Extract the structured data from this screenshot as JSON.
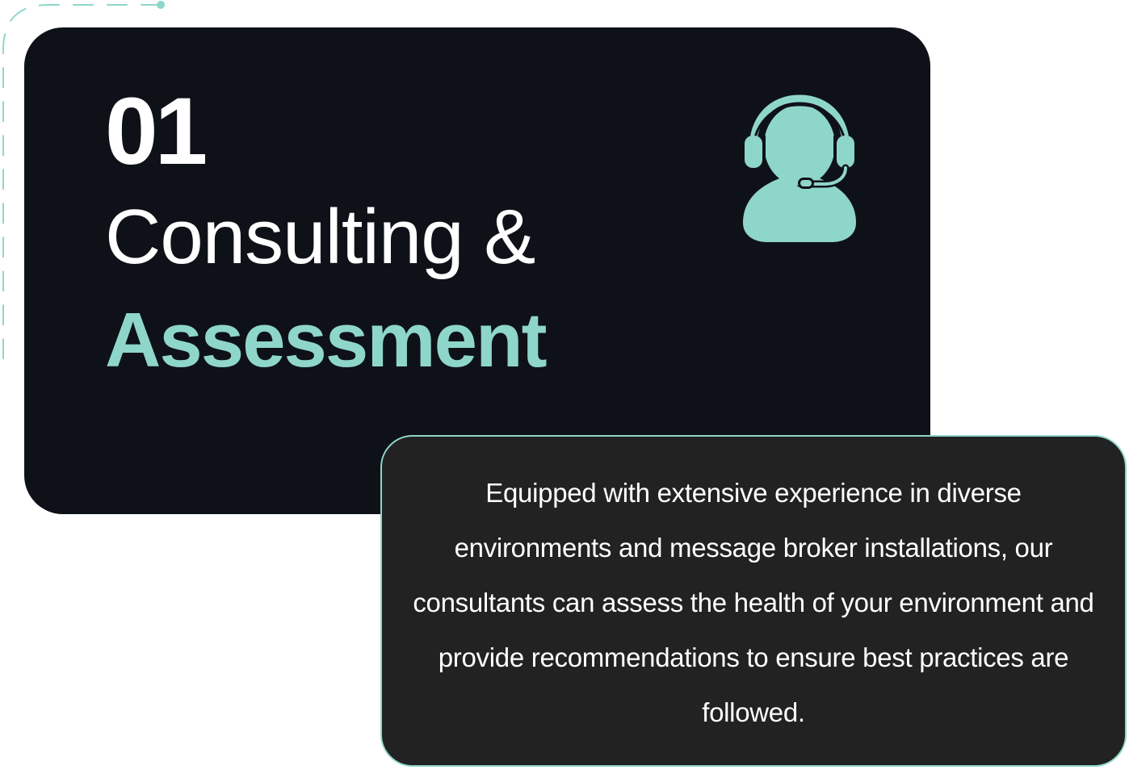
{
  "card": {
    "number": "01",
    "title_line1": "Consulting &",
    "title_line2": "Assessment",
    "icon": "headset-agent-icon"
  },
  "description": {
    "text": "Equipped with extensive experience in diverse environments and message broker installations, our consultants can assess the health of your environment and provide recommendations to ensure best practices are followed."
  },
  "colors": {
    "card_background": "#0e1218",
    "accent": "#8fd6ca",
    "description_background": "#222222",
    "text": "#ffffff"
  }
}
